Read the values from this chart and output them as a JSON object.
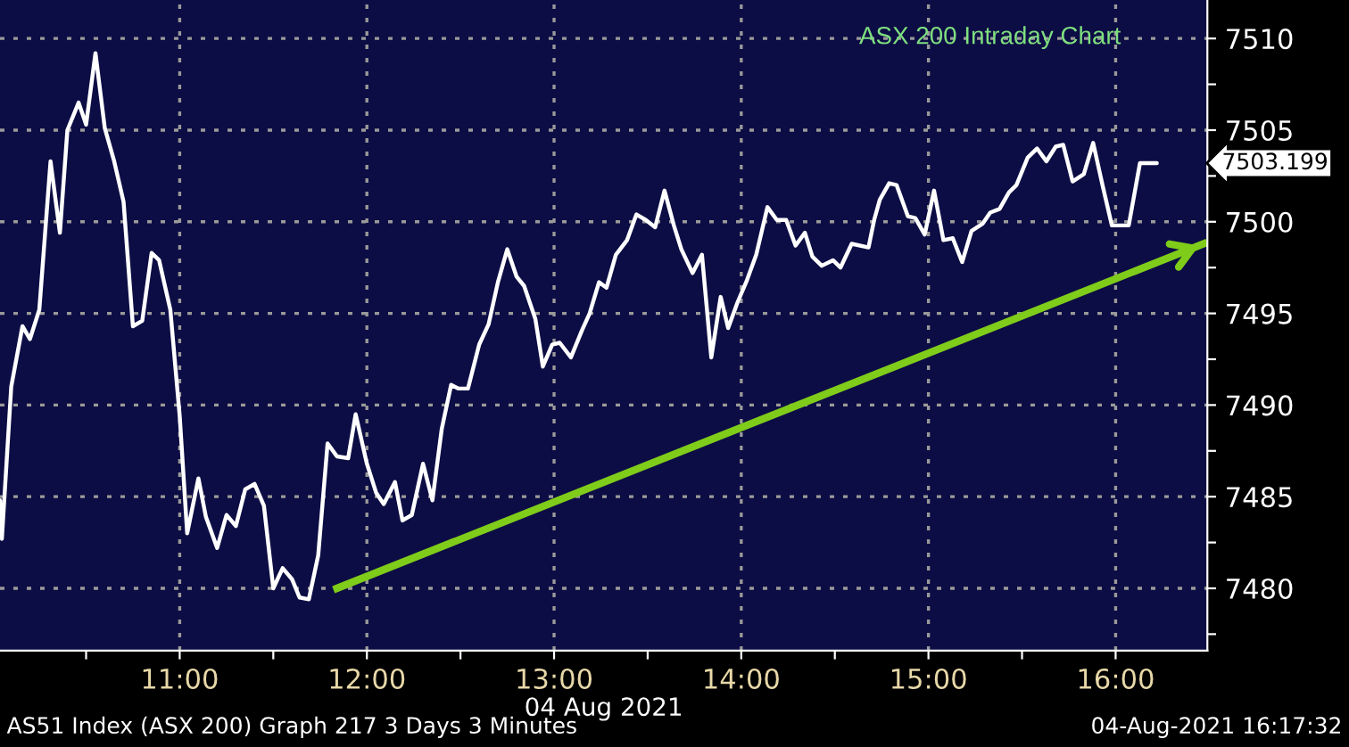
{
  "chart_data": {
    "type": "line",
    "title": "ASX 200 Intraday Chart",
    "xlabel": "04 Aug 2021",
    "annotations": [
      "AS51 Index (ASX 200) Graph 217 3 Days 3 Minutes",
      "04-Aug-2021 16:17:32",
      "7503.199"
    ],
    "series": [
      {
        "color": "#ffffff",
        "x": [
          10.04,
          10.05,
          10.1,
          10.16,
          10.2,
          10.25,
          10.31,
          10.36,
          10.4,
          10.46,
          10.5,
          10.55,
          10.6,
          10.65,
          10.7,
          10.75,
          10.8,
          10.85,
          10.89,
          10.95,
          11.0,
          11.04,
          11.1,
          11.14,
          11.2,
          11.25,
          11.3,
          11.35,
          11.4,
          11.45,
          11.5,
          11.55,
          11.6,
          11.64,
          11.69,
          11.74,
          11.79,
          11.84,
          11.9,
          11.94,
          12.0,
          12.05,
          12.09,
          12.15,
          12.19,
          12.24,
          12.3,
          12.35,
          12.4,
          12.45,
          12.49,
          12.54,
          12.6,
          12.65,
          12.7,
          12.75,
          12.8,
          12.84,
          12.9,
          12.94,
          12.99,
          13.03,
          13.09,
          13.15,
          13.19,
          13.24,
          13.28,
          13.33,
          13.39,
          13.44,
          13.49,
          13.54,
          13.59,
          13.64,
          13.68,
          13.74,
          13.79,
          13.84,
          13.89,
          13.93,
          13.98,
          14.03,
          14.08,
          14.14,
          14.19,
          14.24,
          14.29,
          14.34,
          14.38,
          14.43,
          14.49,
          14.53,
          14.59,
          14.68,
          14.71,
          14.74,
          14.79,
          14.83,
          14.89,
          14.93,
          14.98,
          15.03,
          15.08,
          15.13,
          15.18,
          15.23,
          15.29,
          15.33,
          15.38,
          15.43,
          15.47,
          15.53,
          15.58,
          15.63,
          15.68,
          15.72,
          15.77,
          15.83,
          15.88,
          15.93,
          15.98,
          16.07,
          16.13,
          16.22
        ],
        "values": [
          7484.8,
          7482.7,
          7491.0,
          7494.3,
          7493.6,
          7495.2,
          7503.3,
          7499.4,
          7505.0,
          7506.5,
          7505.3,
          7509.2,
          7505.1,
          7503.3,
          7501.1,
          7494.3,
          7494.6,
          7498.3,
          7497.9,
          7495.2,
          7489.4,
          7483.0,
          7486.0,
          7483.9,
          7482.2,
          7484.0,
          7483.4,
          7485.4,
          7485.7,
          7484.5,
          7480.0,
          7481.1,
          7480.5,
          7479.5,
          7479.4,
          7481.8,
          7487.9,
          7487.2,
          7487.1,
          7489.5,
          7486.8,
          7485.2,
          7484.6,
          7485.8,
          7483.7,
          7484.0,
          7486.8,
          7484.8,
          7488.7,
          7491.1,
          7490.9,
          7490.9,
          7493.3,
          7494.4,
          7496.7,
          7498.5,
          7497.0,
          7496.5,
          7494.7,
          7492.1,
          7493.3,
          7493.4,
          7492.6,
          7494.1,
          7495.0,
          7496.7,
          7496.4,
          7498.2,
          7499.0,
          7500.4,
          7500.1,
          7499.7,
          7501.7,
          7499.8,
          7498.5,
          7497.2,
          7498.2,
          7492.6,
          7495.9,
          7494.2,
          7495.6,
          7496.8,
          7498.2,
          7500.8,
          7500.1,
          7500.1,
          7498.7,
          7499.4,
          7498.1,
          7497.6,
          7497.9,
          7497.5,
          7498.8,
          7498.6,
          7500.1,
          7501.2,
          7502.1,
          7502.0,
          7500.3,
          7500.2,
          7499.3,
          7501.7,
          7499.0,
          7499.1,
          7497.8,
          7499.5,
          7499.9,
          7500.5,
          7500.7,
          7501.6,
          7502.0,
          7503.5,
          7504.0,
          7503.3,
          7504.1,
          7504.2,
          7502.2,
          7502.6,
          7504.3,
          7502.0,
          7499.8,
          7499.8,
          7503.2,
          7503.2
        ]
      },
      {
        "type": "line",
        "color": "#7fcc1a",
        "x": [
          11.84,
          16.47
        ],
        "values": [
          7480.0,
          7498.8
        ]
      }
    ],
    "xlim": [
      10.04,
      16.49
    ],
    "xticks": [
      {
        "value": 10.5,
        "label": null
      },
      {
        "value": 11,
        "label": "11:00"
      },
      {
        "value": 11.5,
        "label": null
      },
      {
        "value": 12,
        "label": "12:00"
      },
      {
        "value": 12.5,
        "label": null
      },
      {
        "value": 13,
        "label": "13:00"
      },
      {
        "value": 13.5,
        "label": null
      },
      {
        "value": 14,
        "label": "14:00"
      },
      {
        "value": 14.5,
        "label": null
      },
      {
        "value": 15,
        "label": "15:00"
      },
      {
        "value": 15.5,
        "label": null
      },
      {
        "value": 16,
        "label": "16:00"
      }
    ],
    "ylim": [
      7476.6,
      7512.1
    ],
    "yticks": [
      {
        "value": 7477.5,
        "label": null
      },
      7480,
      {
        "value": 7482.5,
        "label": null
      },
      7485,
      {
        "value": 7487.5,
        "label": null
      },
      7490,
      {
        "value": 7492.5,
        "label": null
      },
      7495,
      {
        "value": 7497.5,
        "label": null
      },
      7500,
      {
        "value": 7502.5,
        "label": null
      },
      7505,
      {
        "value": 7507.5,
        "label": null
      },
      7510
    ],
    "grid": true,
    "legend": false
  }
}
